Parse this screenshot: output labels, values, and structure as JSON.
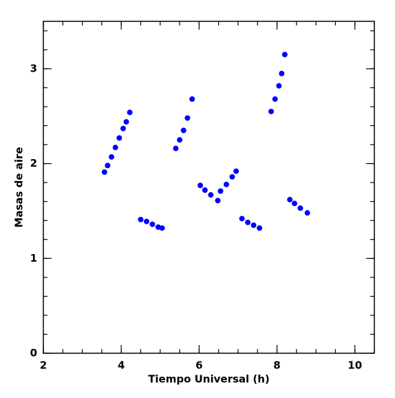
{
  "chart_data": {
    "type": "scatter",
    "x_label": "Tiempo Universal (h)",
    "y_label": "Masas de aire",
    "xlim": [
      2,
      10.5
    ],
    "ylim": [
      0,
      3.5
    ],
    "xticks": [
      2,
      4,
      6,
      8,
      10
    ],
    "yticks": [
      0,
      1,
      2,
      3
    ],
    "color": "#0000ff",
    "x": [
      3.57,
      3.65,
      3.75,
      3.85,
      3.95,
      4.05,
      4.13,
      4.22,
      4.5,
      4.65,
      4.8,
      4.95,
      5.05,
      5.4,
      5.5,
      5.6,
      5.7,
      5.82,
      6.03,
      6.15,
      6.3,
      6.48,
      6.55,
      6.7,
      6.85,
      6.95,
      7.1,
      7.25,
      7.4,
      7.55,
      7.85,
      7.95,
      8.05,
      8.12,
      8.2,
      8.33,
      8.45,
      8.6,
      8.78
    ],
    "values": [
      1.91,
      1.98,
      2.07,
      2.17,
      2.27,
      2.37,
      2.44,
      2.54,
      1.41,
      1.39,
      1.36,
      1.33,
      1.32,
      2.16,
      2.25,
      2.35,
      2.48,
      2.68,
      1.77,
      1.72,
      1.67,
      1.61,
      1.71,
      1.78,
      1.86,
      1.92,
      1.42,
      1.38,
      1.35,
      1.32,
      2.55,
      2.68,
      2.82,
      2.95,
      3.15,
      1.62,
      1.58,
      1.53,
      1.48
    ]
  }
}
